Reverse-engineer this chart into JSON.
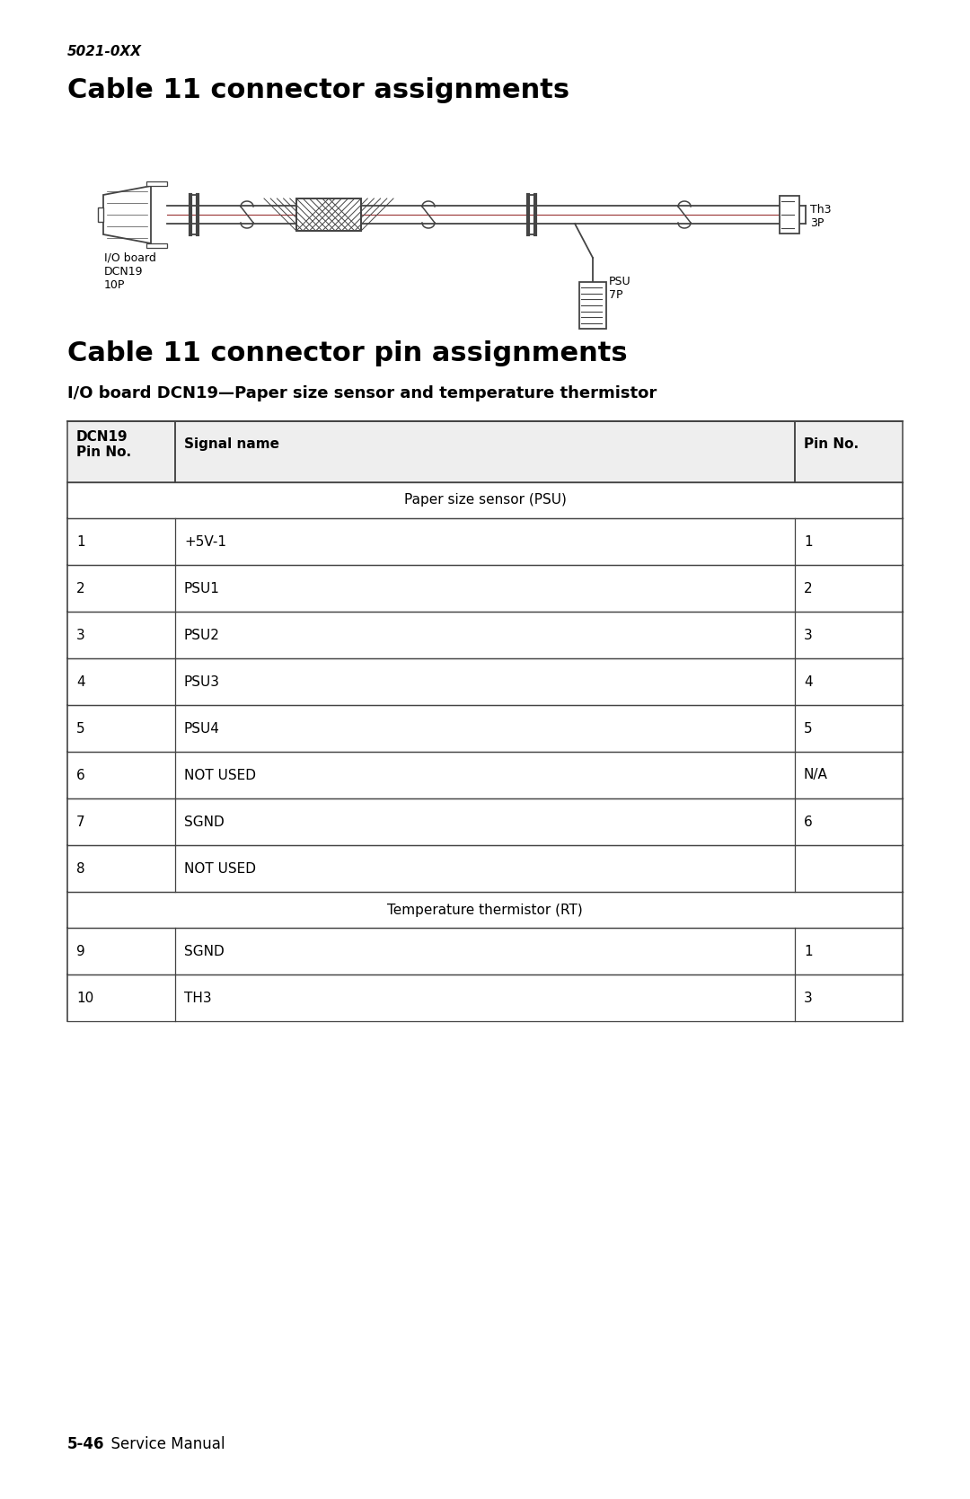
{
  "page_num": "5021-0XX",
  "title1": "Cable 11 connector assignments",
  "title2": "Cable 11 connector pin assignments",
  "subtitle": "I/O board DCN19—Paper size sensor and temperature thermistor",
  "footer_bold": "5-46",
  "footer_normal": "  Service Manual",
  "table_header_col1": "DCN19\nPin No.",
  "table_header_col2": "Signal name",
  "table_header_col3": "Pin No.",
  "section_rows": [
    {
      "label": "Paper size sensor (PSU)"
    },
    {
      "dcn": "1",
      "signal": "+5V-1",
      "pin": "1"
    },
    {
      "dcn": "2",
      "signal": "PSU1",
      "pin": "2"
    },
    {
      "dcn": "3",
      "signal": "PSU2",
      "pin": "3"
    },
    {
      "dcn": "4",
      "signal": "PSU3",
      "pin": "4"
    },
    {
      "dcn": "5",
      "signal": "PSU4",
      "pin": "5"
    },
    {
      "dcn": "6",
      "signal": "NOT USED",
      "pin": "N/A"
    },
    {
      "dcn": "7",
      "signal": "SGND",
      "pin": "6"
    },
    {
      "dcn": "8",
      "signal": "NOT USED",
      "pin": ""
    },
    {
      "label": "Temperature thermistor (RT)"
    },
    {
      "dcn": "9",
      "signal": "SGND",
      "pin": "1"
    },
    {
      "dcn": "10",
      "signal": "TH3",
      "pin": "3"
    }
  ],
  "bg_color": "#ffffff",
  "text_color": "#000000",
  "line_color": "#444444"
}
